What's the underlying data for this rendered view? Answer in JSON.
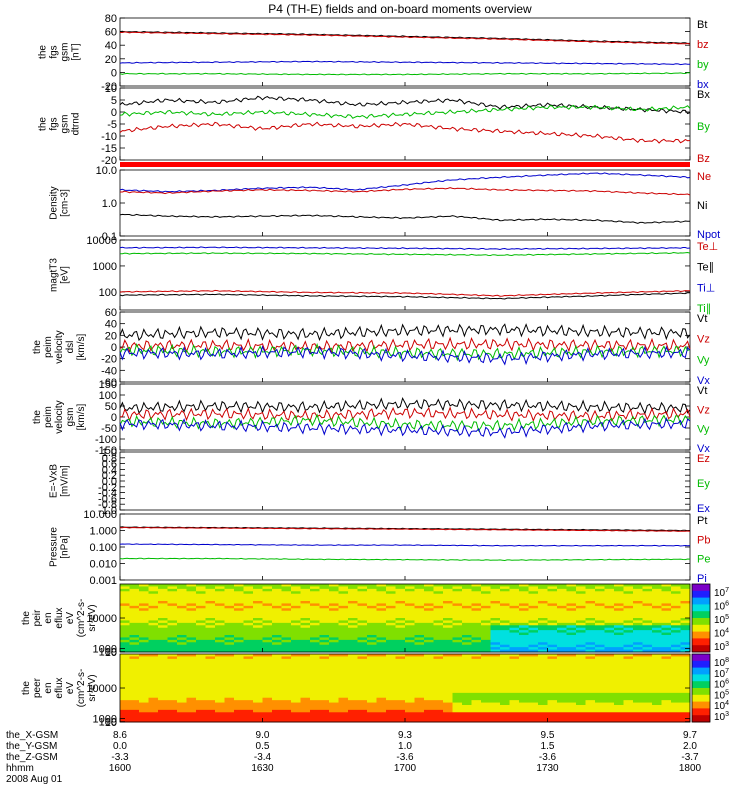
{
  "title": "P4 (TH-E) fields and on-board moments overview",
  "chart_data": [
    {
      "type": "line",
      "ylabel": [
        "the",
        "fgs",
        "gsm",
        "[nT]"
      ],
      "ylim": [
        -20,
        80
      ],
      "ticks": [
        {
          "v": 80,
          "t": "80"
        },
        {
          "v": 60,
          "t": "60"
        },
        {
          "v": 40,
          "t": "40"
        },
        {
          "v": 20,
          "t": "20"
        },
        {
          "v": 0,
          "t": "0"
        },
        {
          "v": -20,
          "t": "-20"
        }
      ],
      "legend": [
        {
          "t": "Bt",
          "c": "#000000"
        },
        {
          "t": "bz",
          "c": "#cc0000"
        },
        {
          "t": "by",
          "c": "#00bb00"
        },
        {
          "t": "bx",
          "c": "#0000cc"
        }
      ],
      "series": [
        {
          "c": "#000000",
          "x": [
            0,
            20,
            40,
            60,
            80,
            100,
            120
          ],
          "y": [
            60,
            58,
            56,
            53,
            50,
            46,
            43
          ]
        },
        {
          "c": "#cc0000",
          "x": [
            0,
            20,
            40,
            60,
            80,
            100,
            120
          ],
          "y": [
            59,
            57,
            55,
            52,
            49,
            45,
            42
          ]
        },
        {
          "c": "#0000cc",
          "x": [
            0,
            20,
            40,
            60,
            80,
            100,
            120
          ],
          "y": [
            14,
            15,
            16,
            15,
            14,
            13,
            12
          ]
        },
        {
          "c": "#00bb00",
          "x": [
            0,
            20,
            40,
            60,
            80,
            100,
            120
          ],
          "y": [
            -2,
            -2,
            -3,
            -3,
            -2,
            -2,
            -1
          ]
        }
      ]
    },
    {
      "type": "line",
      "ylabel": [
        "the",
        "fgs",
        "gsm",
        "dtrnd"
      ],
      "ylim": [
        -20,
        10
      ],
      "ticks": [
        {
          "v": 10,
          "t": "10"
        },
        {
          "v": 5,
          "t": "5"
        },
        {
          "v": 0,
          "t": "0"
        },
        {
          "v": -5,
          "t": "-5"
        },
        {
          "v": -10,
          "t": "-10"
        },
        {
          "v": -15,
          "t": "-15"
        },
        {
          "v": -20,
          "t": "-20"
        }
      ],
      "legend": [
        {
          "t": "Bx",
          "c": "#000000"
        },
        {
          "t": "By",
          "c": "#00bb00"
        },
        {
          "t": "Bz",
          "c": "#cc0000"
        }
      ],
      "series": [
        {
          "c": "#000000",
          "x": [
            0,
            10,
            20,
            30,
            40,
            50,
            60,
            70,
            80,
            90,
            100,
            110,
            120
          ],
          "y": [
            3,
            5,
            4,
            6,
            5,
            3,
            4,
            5,
            2,
            3,
            2,
            1,
            0
          ]
        },
        {
          "c": "#00bb00",
          "x": [
            0,
            10,
            20,
            30,
            40,
            50,
            60,
            70,
            80,
            90,
            100,
            110,
            120
          ],
          "y": [
            -1,
            0,
            -1,
            0,
            -1,
            -2,
            -1,
            0,
            1,
            2,
            2,
            1,
            2
          ]
        },
        {
          "c": "#cc0000",
          "x": [
            0,
            10,
            20,
            30,
            40,
            50,
            60,
            70,
            80,
            90,
            100,
            110,
            120
          ],
          "y": [
            -8,
            -6,
            -5,
            -7,
            -5,
            -6,
            -5,
            -7,
            -8,
            -9,
            -10,
            -12,
            -12
          ]
        }
      ]
    },
    {
      "type": "line",
      "log": true,
      "ylabel": [
        "Density",
        "[cm-3]"
      ],
      "ylim": [
        0.1,
        10
      ],
      "ticks": [
        {
          "v": 10,
          "t": "10.0"
        },
        {
          "v": 1,
          "t": "1.0"
        },
        {
          "v": 0.1,
          "t": "0.1"
        }
      ],
      "legend": [
        {
          "t": "Ne",
          "c": "#cc0000"
        },
        {
          "t": "Ni",
          "c": "#000000"
        },
        {
          "t": "Npot",
          "c": "#0000cc"
        }
      ],
      "series": [
        {
          "c": "#0000cc",
          "x": [
            0,
            10,
            20,
            30,
            40,
            50,
            60,
            70,
            80,
            90,
            100,
            110,
            120
          ],
          "y": [
            2.5,
            2.2,
            2.4,
            2.8,
            3,
            2.5,
            3.5,
            5,
            6,
            7,
            8,
            7,
            6
          ]
        },
        {
          "c": "#cc0000",
          "x": [
            0,
            10,
            20,
            30,
            40,
            50,
            60,
            70,
            80,
            90,
            100,
            110,
            120
          ],
          "y": [
            2.2,
            2.0,
            2.3,
            2.5,
            2.4,
            2.2,
            2.6,
            2.8,
            2.5,
            2.4,
            2.3,
            2.0,
            1.8
          ]
        },
        {
          "c": "#000000",
          "x": [
            0,
            10,
            20,
            30,
            40,
            50,
            60,
            70,
            80,
            90,
            100,
            110,
            120
          ],
          "y": [
            0.45,
            0.4,
            0.38,
            0.4,
            0.42,
            0.38,
            0.35,
            0.4,
            0.3,
            0.32,
            0.3,
            0.25,
            0.28
          ]
        }
      ]
    },
    {
      "type": "line",
      "log": true,
      "ylabel": [
        "magtT3",
        "[eV]"
      ],
      "ylim": [
        20,
        10000
      ],
      "ticks": [
        {
          "v": 10000,
          "t": "10000"
        },
        {
          "v": 1000,
          "t": "1000"
        },
        {
          "v": 100,
          "t": "100"
        }
      ],
      "legend": [
        {
          "t": "Te⊥",
          "c": "#cc0000"
        },
        {
          "t": "Te∥",
          "c": "#000000"
        },
        {
          "t": "Ti⊥",
          "c": "#0000cc"
        },
        {
          "t": "Ti∥",
          "c": "#00bb00"
        }
      ],
      "series": [
        {
          "c": "#0000cc",
          "x": [
            0,
            20,
            40,
            60,
            80,
            100,
            120
          ],
          "y": [
            5000,
            5200,
            5000,
            4800,
            4500,
            4700,
            5000
          ]
        },
        {
          "c": "#00bb00",
          "x": [
            0,
            20,
            40,
            60,
            80,
            100,
            120
          ],
          "y": [
            3000,
            3100,
            3000,
            2800,
            2600,
            2900,
            3200
          ]
        },
        {
          "c": "#cc0000",
          "x": [
            0,
            20,
            40,
            60,
            80,
            100,
            120
          ],
          "y": [
            100,
            110,
            95,
            90,
            70,
            90,
            110
          ]
        },
        {
          "c": "#000000",
          "x": [
            0,
            20,
            40,
            60,
            80,
            100,
            120
          ],
          "y": [
            75,
            80,
            70,
            65,
            55,
            70,
            90
          ]
        }
      ]
    },
    {
      "type": "line",
      "ylabel": [
        "the",
        "peim",
        "velocity",
        "dsl",
        "[km/s]"
      ],
      "ylim": [
        -60,
        60
      ],
      "ticks": [
        {
          "v": 60,
          "t": "60"
        },
        {
          "v": 40,
          "t": "40"
        },
        {
          "v": 20,
          "t": "20"
        },
        {
          "v": 0,
          "t": "0"
        },
        {
          "v": -20,
          "t": "-20"
        },
        {
          "v": -40,
          "t": "-40"
        },
        {
          "v": -60,
          "t": "-60"
        }
      ],
      "legend": [
        {
          "t": "Vt",
          "c": "#000000"
        },
        {
          "t": "Vz",
          "c": "#cc0000"
        },
        {
          "t": "Vy",
          "c": "#00bb00"
        },
        {
          "t": "Vx",
          "c": "#0000cc"
        }
      ],
      "series": [
        {
          "c": "#000000",
          "x": [
            0,
            20,
            40,
            60,
            80,
            100,
            120
          ],
          "y": [
            20,
            25,
            22,
            28,
            30,
            26,
            24
          ]
        },
        {
          "c": "#cc0000",
          "x": [
            0,
            20,
            40,
            60,
            80,
            100,
            120
          ],
          "y": [
            2,
            3,
            0,
            4,
            5,
            3,
            2
          ]
        },
        {
          "c": "#00bb00",
          "x": [
            0,
            20,
            40,
            60,
            80,
            100,
            120
          ],
          "y": [
            -5,
            -8,
            -6,
            -10,
            -12,
            -8,
            -6
          ]
        },
        {
          "c": "#0000cc",
          "x": [
            0,
            20,
            40,
            60,
            80,
            100,
            120
          ],
          "y": [
            -10,
            -12,
            -8,
            -15,
            -20,
            -12,
            -10
          ]
        }
      ]
    },
    {
      "type": "line",
      "ylabel": [
        "the",
        "peim",
        "velocity",
        "gsm",
        "[km/s]"
      ],
      "ylim": [
        -150,
        150
      ],
      "ticks": [
        {
          "v": 150,
          "t": "150"
        },
        {
          "v": 100,
          "t": "100"
        },
        {
          "v": 50,
          "t": "50"
        },
        {
          "v": 0,
          "t": "0"
        },
        {
          "v": -50,
          "t": "-50"
        },
        {
          "v": -100,
          "t": "-100"
        },
        {
          "v": -150,
          "t": "-150"
        }
      ],
      "legend": [
        {
          "t": "Vt",
          "c": "#000000"
        },
        {
          "t": "Vz",
          "c": "#cc0000"
        },
        {
          "t": "Vy",
          "c": "#00bb00"
        },
        {
          "t": "Vx",
          "c": "#0000cc"
        }
      ],
      "series": [
        {
          "c": "#000000",
          "x": [
            0,
            20,
            40,
            60,
            80,
            100,
            120
          ],
          "y": [
            40,
            50,
            45,
            60,
            55,
            45,
            40
          ]
        },
        {
          "c": "#cc0000",
          "x": [
            0,
            20,
            40,
            60,
            80,
            100,
            120
          ],
          "y": [
            10,
            15,
            5,
            20,
            10,
            5,
            15
          ]
        },
        {
          "c": "#00bb00",
          "x": [
            0,
            20,
            40,
            60,
            80,
            100,
            120
          ],
          "y": [
            -20,
            -30,
            -15,
            -35,
            -40,
            -20,
            -10
          ]
        },
        {
          "c": "#0000cc",
          "x": [
            0,
            20,
            40,
            60,
            80,
            100,
            120
          ],
          "y": [
            -30,
            -40,
            -50,
            -60,
            -70,
            -40,
            -30
          ]
        }
      ]
    },
    {
      "type": "line",
      "ylabel": [
        "E=-VxB",
        "[mV/m]"
      ],
      "ylim": [
        -1,
        1
      ],
      "ticks": [
        {
          "v": 1,
          "t": "1.0"
        },
        {
          "v": 0.8,
          "t": "0.8"
        },
        {
          "v": 0.6,
          "t": "0.6"
        },
        {
          "v": 0.4,
          "t": "0.4"
        },
        {
          "v": 0.2,
          "t": "0.2"
        },
        {
          "v": 0,
          "t": "0.0"
        },
        {
          "v": -0.2,
          "t": "-0.2"
        },
        {
          "v": -0.4,
          "t": "-0.4"
        },
        {
          "v": -0.6,
          "t": "-0.6"
        },
        {
          "v": -0.8,
          "t": "-0.8"
        },
        {
          "v": -1,
          "t": "-1.0"
        }
      ],
      "legend": [
        {
          "t": "Ez",
          "c": "#cc0000"
        },
        {
          "t": "Ey",
          "c": "#00bb00"
        },
        {
          "t": "Ex",
          "c": "#0000cc"
        }
      ],
      "series": []
    },
    {
      "type": "line",
      "log": true,
      "ylabel": [
        "Pressure",
        "[nPa]"
      ],
      "ylim": [
        0.001,
        10
      ],
      "ticks": [
        {
          "v": 10,
          "t": "10.000"
        },
        {
          "v": 1,
          "t": "1.000"
        },
        {
          "v": 0.1,
          "t": "0.100"
        },
        {
          "v": 0.01,
          "t": "0.010"
        },
        {
          "v": 0.001,
          "t": "0.001"
        }
      ],
      "legend": [
        {
          "t": "Pt",
          "c": "#000000"
        },
        {
          "t": "Pb",
          "c": "#cc0000"
        },
        {
          "t": "Pe",
          "c": "#00bb00"
        },
        {
          "t": "Pi",
          "c": "#0000cc"
        }
      ],
      "series": [
        {
          "c": "#000000",
          "x": [
            0,
            20,
            40,
            60,
            80,
            100,
            120
          ],
          "y": [
            1.6,
            1.5,
            1.4,
            1.3,
            1.2,
            1.1,
            1.0
          ]
        },
        {
          "c": "#cc0000",
          "x": [
            0,
            20,
            40,
            60,
            80,
            100,
            120
          ],
          "y": [
            1.5,
            1.4,
            1.3,
            1.2,
            1.1,
            1.0,
            0.9
          ]
        },
        {
          "c": "#0000cc",
          "x": [
            0,
            20,
            40,
            60,
            80,
            100,
            120
          ],
          "y": [
            0.15,
            0.14,
            0.13,
            0.13,
            0.12,
            0.12,
            0.12
          ]
        },
        {
          "c": "#00bb00",
          "x": [
            0,
            20,
            40,
            60,
            80,
            100,
            120
          ],
          "y": [
            0.02,
            0.02,
            0.018,
            0.017,
            0.016,
            0.017,
            0.018
          ]
        }
      ]
    },
    {
      "type": "heatmap",
      "ylabel": [
        "the",
        "peir",
        "en",
        "eflux",
        "eV",
        "(cm^2-s-",
        "sr-eV)"
      ],
      "ylim": [
        6,
        20000
      ],
      "ticks": [
        {
          "v": 10000,
          "t": "10000"
        },
        {
          "v": 1000,
          "t": "1000"
        },
        {
          "v": 100,
          "t": "100"
        },
        {
          "v": 10,
          "t": "10"
        }
      ],
      "colorbar": [
        {
          "t": "10",
          "e": "7"
        },
        {
          "t": "10",
          "e": "6"
        },
        {
          "t": "10",
          "e": "5"
        },
        {
          "t": "10",
          "e": "4"
        },
        {
          "t": "10",
          "e": "3"
        }
      ]
    },
    {
      "type": "heatmap",
      "ylabel": [
        "the",
        "peer",
        "en",
        "eflux",
        "eV",
        "(cm^2-s-",
        "sr-eV)"
      ],
      "ylim": [
        6,
        20000
      ],
      "ticks": [
        {
          "v": 10000,
          "t": "10000"
        },
        {
          "v": 1000,
          "t": "1000"
        },
        {
          "v": 100,
          "t": "100"
        },
        {
          "v": 10,
          "t": "10"
        }
      ],
      "colorbar": [
        {
          "t": "10",
          "e": "8"
        },
        {
          "t": "10",
          "e": "7"
        },
        {
          "t": "10",
          "e": "6"
        },
        {
          "t": "10",
          "e": "5"
        },
        {
          "t": "10",
          "e": "4"
        },
        {
          "t": "10",
          "e": "3"
        }
      ]
    }
  ],
  "xaxis": {
    "rows": [
      {
        "label": "the_X-GSM",
        "values": [
          "8.6",
          "9.0",
          "9.3",
          "9.5",
          "9.7"
        ]
      },
      {
        "label": "the_Y-GSM",
        "values": [
          "0.0",
          "0.5",
          "1.0",
          "1.5",
          "2.0"
        ]
      },
      {
        "label": "the_Z-GSM",
        "values": [
          "-3.3",
          "-3.4",
          "-3.6",
          "-3.6",
          "-3.7"
        ]
      },
      {
        "label": "hhmm",
        "values": [
          "1600",
          "1630",
          "1700",
          "1730",
          "1800"
        ]
      }
    ],
    "date": "2008 Aug 01"
  }
}
